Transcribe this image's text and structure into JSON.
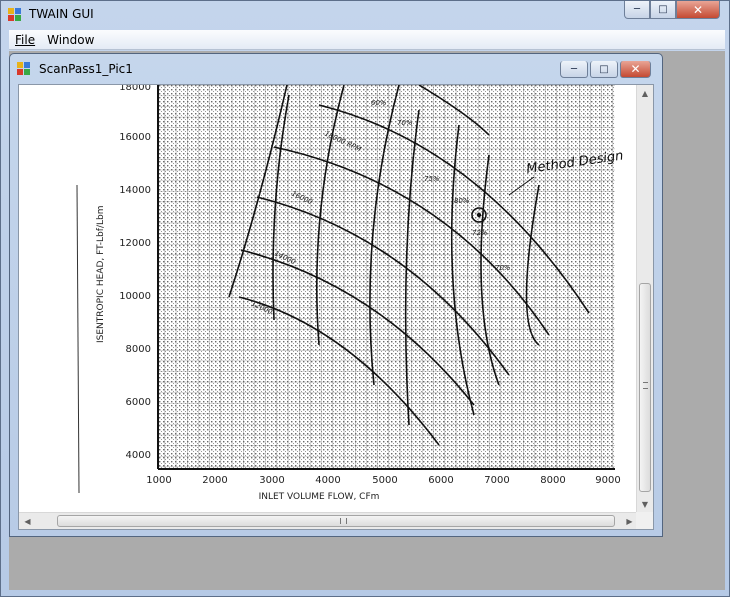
{
  "app": {
    "title": "TWAIN GUI",
    "icon": "twain-app-icon",
    "controls": {
      "minimize": "─",
      "maximize": "□",
      "close": "✕"
    }
  },
  "menu": [
    {
      "label": "File"
    },
    {
      "label": "Window"
    }
  ],
  "child_window": {
    "title": "ScanPass1_Pic1",
    "icon": "twain-app-icon",
    "controls": {
      "minimize": "─",
      "maximize": "□",
      "close": "✕"
    }
  },
  "scan": {
    "axis_y_label": "ISENTROPIC HEAD, FT-Lbf/Lbm",
    "axis_x_label": "INLET VOLUME FLOW, CFm",
    "y_ticks": [
      "16000",
      "14000",
      "12000",
      "10000",
      "8000",
      "6000",
      "4000"
    ],
    "y_top_partial": "18000",
    "x_ticks": [
      "1000",
      "2000",
      "3000",
      "4000",
      "5000",
      "6000",
      "7000",
      "8000",
      "9000"
    ],
    "annotation": "Method Design",
    "efficiency_labels": [
      "60%",
      "70%",
      "75%",
      "80%",
      "72%",
      "70%"
    ],
    "speed_labels": [
      "18000 RPM",
      "16000",
      "14000",
      "12000"
    ]
  },
  "scrollbars": {
    "up": "▲",
    "down": "▼",
    "left": "◀",
    "right": "▶"
  }
}
